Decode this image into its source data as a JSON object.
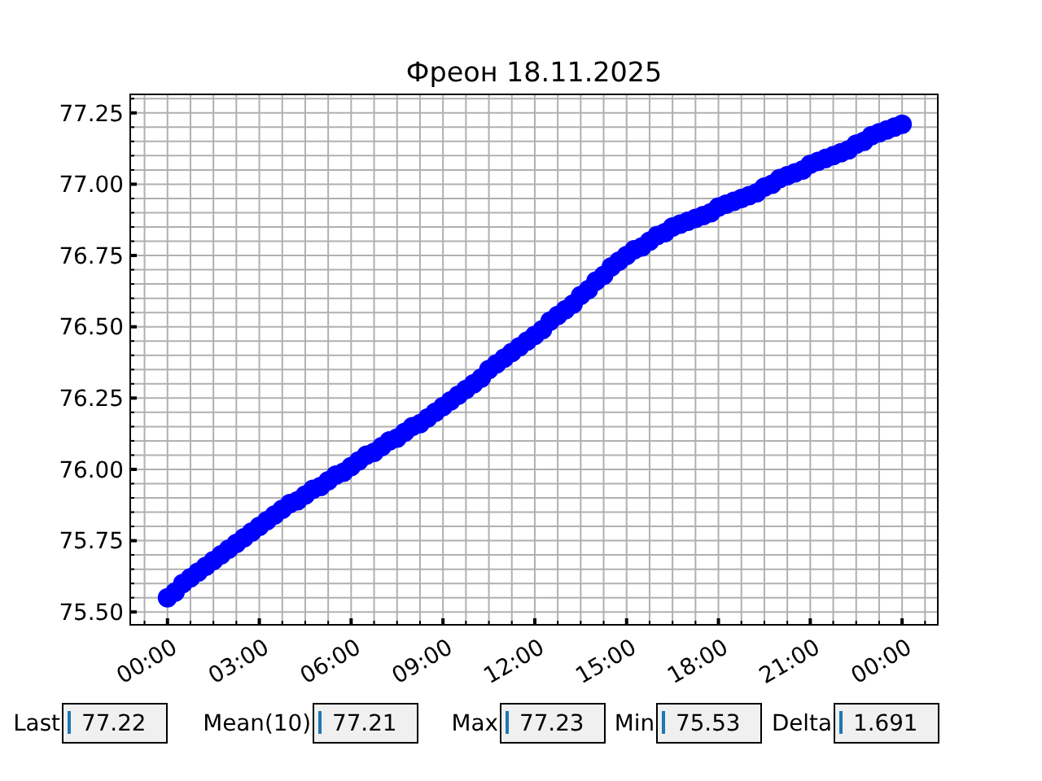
{
  "chart_data": [
    {
      "type": "scatter",
      "title": "Фреон 18.11.2025",
      "color": "#0000ff",
      "marker": "circle",
      "grid": true,
      "x": [
        "2025-11-18T00:00",
        "2025-11-18T00:15",
        "2025-11-18T00:30",
        "2025-11-18T00:45",
        "2025-11-18T01:00",
        "2025-11-18T01:15",
        "2025-11-18T01:30",
        "2025-11-18T01:45",
        "2025-11-18T02:00",
        "2025-11-18T02:15",
        "2025-11-18T02:30",
        "2025-11-18T02:45",
        "2025-11-18T03:00",
        "2025-11-18T03:15",
        "2025-11-18T03:30",
        "2025-11-18T03:45",
        "2025-11-18T04:00",
        "2025-11-18T04:15",
        "2025-11-18T04:30",
        "2025-11-18T04:45",
        "2025-11-18T05:00",
        "2025-11-18T05:15",
        "2025-11-18T05:30",
        "2025-11-18T05:45",
        "2025-11-18T06:00",
        "2025-11-18T06:15",
        "2025-11-18T06:30",
        "2025-11-18T06:45",
        "2025-11-18T07:00",
        "2025-11-18T07:15",
        "2025-11-18T07:30",
        "2025-11-18T07:45",
        "2025-11-18T08:00",
        "2025-11-18T08:15",
        "2025-11-18T08:30",
        "2025-11-18T08:45",
        "2025-11-18T09:00",
        "2025-11-18T09:15",
        "2025-11-18T09:30",
        "2025-11-18T09:45",
        "2025-11-18T10:00",
        "2025-11-18T10:15",
        "2025-11-18T10:30",
        "2025-11-18T10:45",
        "2025-11-18T11:00",
        "2025-11-18T11:15",
        "2025-11-18T11:30",
        "2025-11-18T11:45",
        "2025-11-18T12:00",
        "2025-11-18T12:15",
        "2025-11-18T12:30",
        "2025-11-18T12:45",
        "2025-11-18T13:00",
        "2025-11-18T13:15",
        "2025-11-18T13:30",
        "2025-11-18T13:45",
        "2025-11-18T14:00",
        "2025-11-18T14:15",
        "2025-11-18T14:30",
        "2025-11-18T14:45",
        "2025-11-18T15:00",
        "2025-11-18T15:15",
        "2025-11-18T15:30",
        "2025-11-18T15:45",
        "2025-11-18T16:00",
        "2025-11-18T16:15",
        "2025-11-18T16:30",
        "2025-11-18T16:45",
        "2025-11-18T17:00",
        "2025-11-18T17:15",
        "2025-11-18T17:30",
        "2025-11-18T17:45",
        "2025-11-18T18:00",
        "2025-11-18T18:15",
        "2025-11-18T18:30",
        "2025-11-18T18:45",
        "2025-11-18T19:00",
        "2025-11-18T19:15",
        "2025-11-18T19:30",
        "2025-11-18T19:45",
        "2025-11-18T20:00",
        "2025-11-18T20:15",
        "2025-11-18T20:30",
        "2025-11-18T20:45",
        "2025-11-18T21:00",
        "2025-11-18T21:15",
        "2025-11-18T21:30",
        "2025-11-18T21:45",
        "2025-11-18T22:00",
        "2025-11-18T22:15",
        "2025-11-18T22:30",
        "2025-11-18T22:45",
        "2025-11-18T23:00",
        "2025-11-18T23:15",
        "2025-11-18T23:30",
        "2025-11-18T23:45",
        "2025-11-19T00:00"
      ],
      "values": [
        75.55,
        75.57,
        75.6,
        75.62,
        75.64,
        75.66,
        75.68,
        75.7,
        75.72,
        75.74,
        75.76,
        75.78,
        75.8,
        75.82,
        75.84,
        75.86,
        75.88,
        75.89,
        75.91,
        75.93,
        75.94,
        75.96,
        75.98,
        75.99,
        76.01,
        76.03,
        76.05,
        76.06,
        76.08,
        76.1,
        76.11,
        76.13,
        76.15,
        76.16,
        76.18,
        76.2,
        76.22,
        76.24,
        76.26,
        76.28,
        76.3,
        76.32,
        76.35,
        76.37,
        76.39,
        76.41,
        76.43,
        76.45,
        76.47,
        76.49,
        76.52,
        76.54,
        76.56,
        76.58,
        76.61,
        76.63,
        76.66,
        76.68,
        76.71,
        76.73,
        76.75,
        76.77,
        76.78,
        76.8,
        76.82,
        76.83,
        76.85,
        76.86,
        76.87,
        76.88,
        76.89,
        76.9,
        76.92,
        76.93,
        76.94,
        76.95,
        76.96,
        76.97,
        76.99,
        77.0,
        77.02,
        77.03,
        77.04,
        77.05,
        77.07,
        77.08,
        77.09,
        77.1,
        77.11,
        77.12,
        77.14,
        77.15,
        77.17,
        77.18,
        77.19,
        77.2,
        77.21
      ],
      "xlim": [
        "2025-11-17T22:47",
        "2025-11-19T01:10"
      ],
      "ylim": [
        75.455,
        77.315
      ],
      "xticks": [
        {
          "value": "2025-11-17T23:15",
          "label": null
        },
        {
          "value": "2025-11-18T00:00",
          "label": "00:00"
        },
        {
          "value": "2025-11-18T00:45",
          "label": null
        },
        {
          "value": "2025-11-18T01:30",
          "label": null
        },
        {
          "value": "2025-11-18T02:15",
          "label": null
        },
        {
          "value": "2025-11-18T03:00",
          "label": "03:00"
        },
        {
          "value": "2025-11-18T03:45",
          "label": null
        },
        {
          "value": "2025-11-18T04:30",
          "label": null
        },
        {
          "value": "2025-11-18T05:15",
          "label": null
        },
        {
          "value": "2025-11-18T06:00",
          "label": "06:00"
        },
        {
          "value": "2025-11-18T06:45",
          "label": null
        },
        {
          "value": "2025-11-18T07:30",
          "label": null
        },
        {
          "value": "2025-11-18T08:15",
          "label": null
        },
        {
          "value": "2025-11-18T09:00",
          "label": "09:00"
        },
        {
          "value": "2025-11-18T09:45",
          "label": null
        },
        {
          "value": "2025-11-18T10:30",
          "label": null
        },
        {
          "value": "2025-11-18T11:15",
          "label": null
        },
        {
          "value": "2025-11-18T12:00",
          "label": "12:00"
        },
        {
          "value": "2025-11-18T12:45",
          "label": null
        },
        {
          "value": "2025-11-18T13:30",
          "label": null
        },
        {
          "value": "2025-11-18T14:15",
          "label": null
        },
        {
          "value": "2025-11-18T15:00",
          "label": "15:00"
        },
        {
          "value": "2025-11-18T15:45",
          "label": null
        },
        {
          "value": "2025-11-18T16:30",
          "label": null
        },
        {
          "value": "2025-11-18T17:15",
          "label": null
        },
        {
          "value": "2025-11-18T18:00",
          "label": "18:00"
        },
        {
          "value": "2025-11-18T18:45",
          "label": null
        },
        {
          "value": "2025-11-18T19:30",
          "label": null
        },
        {
          "value": "2025-11-18T20:15",
          "label": null
        },
        {
          "value": "2025-11-18T21:00",
          "label": "21:00"
        },
        {
          "value": "2025-11-18T21:45",
          "label": null
        },
        {
          "value": "2025-11-18T22:30",
          "label": null
        },
        {
          "value": "2025-11-18T23:15",
          "label": null
        },
        {
          "value": "2025-11-19T00:00",
          "label": "00:00"
        },
        {
          "value": "2025-11-19T00:45",
          "label": null
        }
      ],
      "yticks": [
        {
          "value": 75.5,
          "label": "75.50"
        },
        {
          "value": 75.55,
          "label": null
        },
        {
          "value": 75.6,
          "label": null
        },
        {
          "value": 75.65,
          "label": null
        },
        {
          "value": 75.7,
          "label": null
        },
        {
          "value": 75.75,
          "label": "75.75"
        },
        {
          "value": 75.8,
          "label": null
        },
        {
          "value": 75.85,
          "label": null
        },
        {
          "value": 75.9,
          "label": null
        },
        {
          "value": 75.95,
          "label": null
        },
        {
          "value": 76.0,
          "label": "76.00"
        },
        {
          "value": 76.05,
          "label": null
        },
        {
          "value": 76.1,
          "label": null
        },
        {
          "value": 76.15,
          "label": null
        },
        {
          "value": 76.2,
          "label": null
        },
        {
          "value": 76.25,
          "label": "76.25"
        },
        {
          "value": 76.3,
          "label": null
        },
        {
          "value": 76.35,
          "label": null
        },
        {
          "value": 76.4,
          "label": null
        },
        {
          "value": 76.45,
          "label": null
        },
        {
          "value": 76.5,
          "label": "76.50"
        },
        {
          "value": 76.55,
          "label": null
        },
        {
          "value": 76.6,
          "label": null
        },
        {
          "value": 76.65,
          "label": null
        },
        {
          "value": 76.7,
          "label": null
        },
        {
          "value": 76.75,
          "label": "76.75"
        },
        {
          "value": 76.8,
          "label": null
        },
        {
          "value": 76.85,
          "label": null
        },
        {
          "value": 76.9,
          "label": null
        },
        {
          "value": 76.95,
          "label": null
        },
        {
          "value": 77.0,
          "label": "77.00"
        },
        {
          "value": 77.05,
          "label": null
        },
        {
          "value": 77.1,
          "label": null
        },
        {
          "value": 77.15,
          "label": null
        },
        {
          "value": 77.2,
          "label": null
        },
        {
          "value": 77.25,
          "label": "77.25"
        },
        {
          "value": 77.3,
          "label": null
        }
      ]
    },
    {
      "type": "other",
      "categories": [
        "Last",
        "Mean(10)",
        "Max",
        "Min",
        "Delta"
      ],
      "values": [
        77.22,
        77.21,
        77.23,
        75.53,
        1.691
      ],
      "data_labels": true
    }
  ]
}
